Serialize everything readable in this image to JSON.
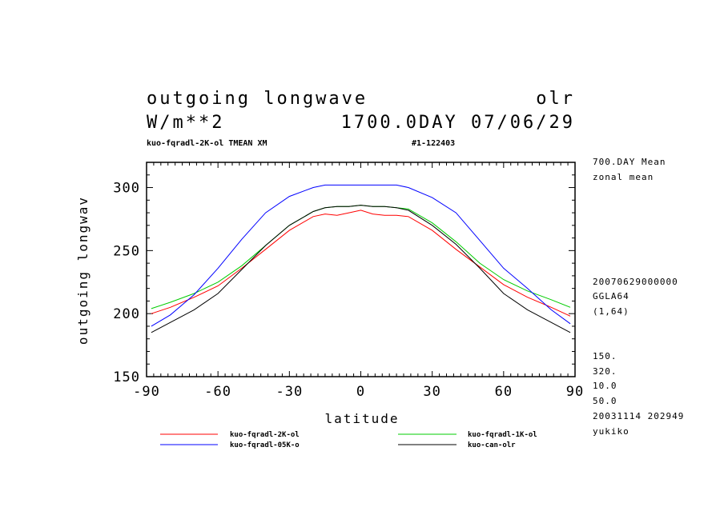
{
  "header": {
    "title_left": "outgoing longwave",
    "title_right": "olr",
    "units": "W/m**2",
    "time": "1700.0DAY 07/06/29",
    "subtitle_left": "kuo-fqradl-2K-ol TMEAN XM",
    "subtitle_right": "#1-122403"
  },
  "side_info": {
    "line1": "700.DAY Mean",
    "line2": "zonal mean",
    "line3": "20070629000000",
    "line4": "GGLA64",
    "line5": "(1,64)",
    "line6": "150.",
    "line7": "320.",
    "line8": "10.0",
    "line9": "50.0",
    "line10": "20031114 202949",
    "line11": "yukiko"
  },
  "colors": {
    "red": "#ff0000",
    "green": "#00cc00",
    "blue": "#0000ff",
    "black": "#000000"
  },
  "chart_data": {
    "type": "line",
    "xlabel": "latitude",
    "ylabel": "outgoing longwav",
    "xlim": [
      -90,
      90
    ],
    "ylim": [
      150,
      320
    ],
    "xticks": [
      -90,
      -60,
      -30,
      0,
      30,
      60,
      90
    ],
    "yticks": [
      150,
      200,
      250,
      300
    ],
    "series": [
      {
        "name": "kuo-fqradl-2K-ol",
        "color": "#ff0000",
        "x": [
          -88,
          -80,
          -70,
          -60,
          -50,
          -40,
          -30,
          -20,
          -15,
          -10,
          -5,
          0,
          5,
          10,
          15,
          20,
          30,
          40,
          50,
          60,
          70,
          80,
          88
        ],
        "y": [
          200,
          205,
          213,
          222,
          236,
          251,
          266,
          277,
          279,
          278,
          280,
          282,
          279,
          278,
          278,
          277,
          266,
          251,
          237,
          223,
          213,
          205,
          198
        ]
      },
      {
        "name": "kuo-fqradl-1K-ol",
        "color": "#00cc00",
        "x": [
          -88,
          -80,
          -70,
          -60,
          -50,
          -40,
          -30,
          -20,
          -15,
          -10,
          -5,
          0,
          5,
          10,
          15,
          20,
          30,
          40,
          50,
          60,
          70,
          80,
          88
        ],
        "y": [
          204,
          209,
          216,
          225,
          238,
          254,
          270,
          281,
          284,
          285,
          285,
          286,
          285,
          285,
          284,
          283,
          272,
          257,
          240,
          227,
          218,
          211,
          205
        ]
      },
      {
        "name": "kuo-fqradl-05K-o",
        "color": "#0000ff",
        "x": [
          -88,
          -80,
          -70,
          -60,
          -50,
          -40,
          -30,
          -20,
          -15,
          -10,
          0,
          10,
          15,
          20,
          30,
          40,
          50,
          60,
          70,
          80,
          88
        ],
        "y": [
          190,
          199,
          215,
          236,
          259,
          280,
          293,
          300,
          302,
          302,
          302,
          302,
          302,
          300,
          292,
          280,
          258,
          236,
          220,
          203,
          192
        ]
      },
      {
        "name": "kuo-can-olr",
        "color": "#000000",
        "x": [
          -88,
          -80,
          -70,
          -60,
          -50,
          -40,
          -30,
          -20,
          -15,
          -10,
          -5,
          0,
          5,
          10,
          15,
          20,
          30,
          40,
          50,
          60,
          70,
          80,
          88
        ],
        "y": [
          185,
          193,
          203,
          216,
          235,
          254,
          270,
          281,
          284,
          285,
          285,
          286,
          285,
          285,
          284,
          282,
          270,
          255,
          236,
          216,
          203,
          193,
          185
        ]
      }
    ]
  }
}
